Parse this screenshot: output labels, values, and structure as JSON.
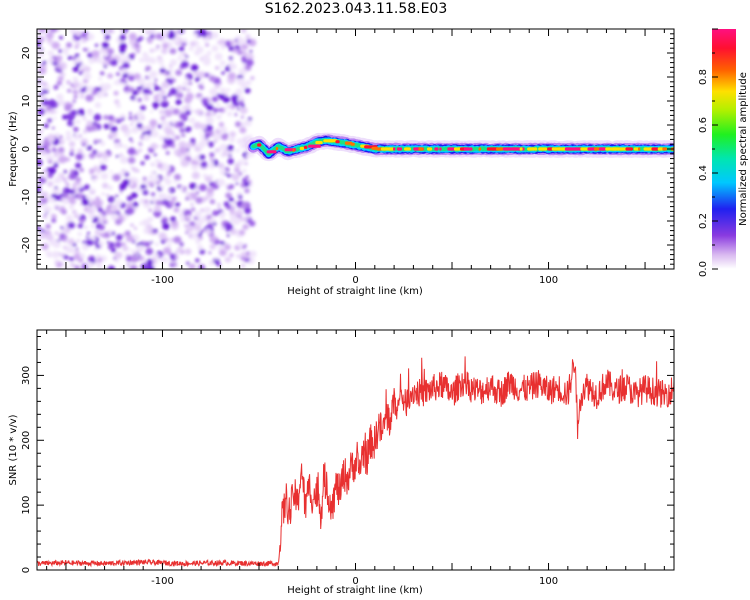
{
  "figure": {
    "title": "S162.2023.043.11.58.E03"
  },
  "chart_data": [
    {
      "type": "heatmap",
      "title": "",
      "xlabel": "Height of straight line (km)",
      "ylabel": "Frequency (Hz)",
      "xlim": [
        -165,
        165
      ],
      "ylim": [
        -25,
        25
      ],
      "xticks": [
        -100,
        0,
        100
      ],
      "yticks": [
        -20,
        -10,
        0,
        10,
        20
      ],
      "colorbar": {
        "label": "Normalized spectral amplitude",
        "range": [
          0,
          1
        ],
        "ticks": [
          0.0,
          0.2,
          0.4,
          0.6,
          0.8
        ],
        "colormap": "purple-blue-cyan-green-yellow-orange-red-magenta"
      },
      "description_regions": [
        {
          "x_range": [
            -165,
            -53
          ],
          "frequency_range": [
            -25,
            25
          ],
          "amplitude": "low broadband noise (0.05-0.3)"
        },
        {
          "x_range": [
            -53,
            165
          ],
          "frequency_center": 0,
          "frequency_width": 2,
          "amplitude": "narrow carrier line, peak ~0.9-1.0"
        }
      ],
      "carrier_line": {
        "x": [
          -53,
          -50,
          -45,
          -40,
          -35,
          -30,
          -25,
          -20,
          -15,
          -10,
          -5,
          0,
          10,
          20,
          40,
          60,
          80,
          100,
          120,
          140,
          165
        ],
        "frequency": [
          0.5,
          1.0,
          -1.0,
          0.5,
          -0.5,
          0.0,
          0.5,
          1.5,
          1.8,
          1.5,
          1.2,
          0.8,
          0.0,
          0.0,
          0.0,
          0.0,
          0.0,
          0.0,
          0.0,
          0.0,
          0.0
        ]
      }
    },
    {
      "type": "line",
      "title": "",
      "xlabel": "Height of straight line (km)",
      "ylabel": "SNR (10 * v/v)",
      "xlim": [
        -165,
        165
      ],
      "ylim": [
        0,
        370
      ],
      "xticks": [
        -100,
        0,
        100
      ],
      "yticks": [
        0,
        100,
        200,
        300
      ],
      "series": [
        {
          "color": "#e83030",
          "x": [
            -165,
            -150,
            -130,
            -110,
            -90,
            -70,
            -50,
            -40,
            -39,
            -38,
            -36,
            -34,
            -32,
            -30,
            -28,
            -26,
            -24,
            -22,
            -20,
            -18,
            -16,
            -14,
            -12,
            -10,
            -8,
            -6,
            -4,
            -2,
            0,
            2,
            4,
            6,
            8,
            10,
            12,
            14,
            16,
            18,
            20,
            22,
            24,
            26,
            28,
            30,
            35,
            40,
            45,
            50,
            55,
            60,
            65,
            70,
            75,
            80,
            85,
            90,
            95,
            100,
            105,
            110,
            112,
            114,
            115,
            116,
            118,
            120,
            125,
            130,
            135,
            140,
            145,
            150,
            155,
            160,
            165
          ],
          "y": [
            10,
            11,
            10,
            12,
            10,
            11,
            10,
            10,
            40,
            80,
            110,
            85,
            120,
            100,
            160,
            95,
            130,
            110,
            120,
            90,
            140,
            115,
            100,
            130,
            120,
            150,
            140,
            160,
            165,
            155,
            185,
            170,
            200,
            195,
            225,
            210,
            240,
            230,
            260,
            250,
            270,
            255,
            270,
            275,
            272,
            280,
            285,
            270,
            290,
            280,
            275,
            285,
            270,
            290,
            278,
            280,
            288,
            275,
            282,
            270,
            300,
            330,
            200,
            260,
            280,
            285,
            270,
            290,
            275,
            285,
            270,
            280,
            275,
            270,
            280
          ]
        }
      ]
    }
  ]
}
